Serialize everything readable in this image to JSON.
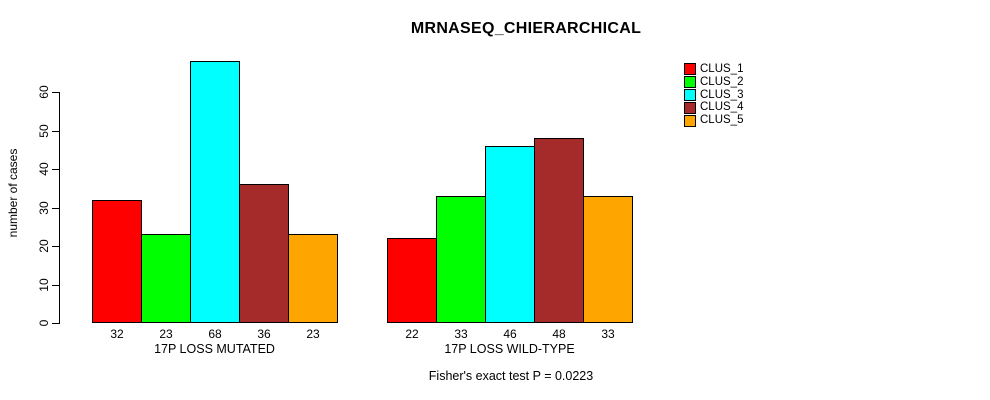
{
  "chart_data": {
    "type": "bar",
    "title": "MRNASEQ_CHIERARCHICAL",
    "ylabel": "number of cases",
    "xlabel": "",
    "footer": "Fisher's exact test P = 0.0223",
    "yticks": [
      0,
      10,
      20,
      30,
      40,
      50,
      60
    ],
    "ylim": [
      0,
      68
    ],
    "grid": false,
    "legend_position": "right",
    "categories": [
      "17P LOSS MUTATED",
      "17P LOSS WILD-TYPE"
    ],
    "series": [
      {
        "name": "CLUS_1",
        "color": "#ff0000",
        "values": [
          32,
          22
        ]
      },
      {
        "name": "CLUS_2",
        "color": "#00ff00",
        "values": [
          23,
          33
        ]
      },
      {
        "name": "CLUS_3",
        "color": "#00ffff",
        "values": [
          68,
          46
        ]
      },
      {
        "name": "CLUS_4",
        "color": "#a52a2a",
        "values": [
          36,
          48
        ]
      },
      {
        "name": "CLUS_5",
        "color": "#ffa500",
        "values": [
          23,
          33
        ]
      }
    ],
    "bar_value_labels_shown": true,
    "background_color": "#ffffff",
    "axis_color": "#000000"
  }
}
